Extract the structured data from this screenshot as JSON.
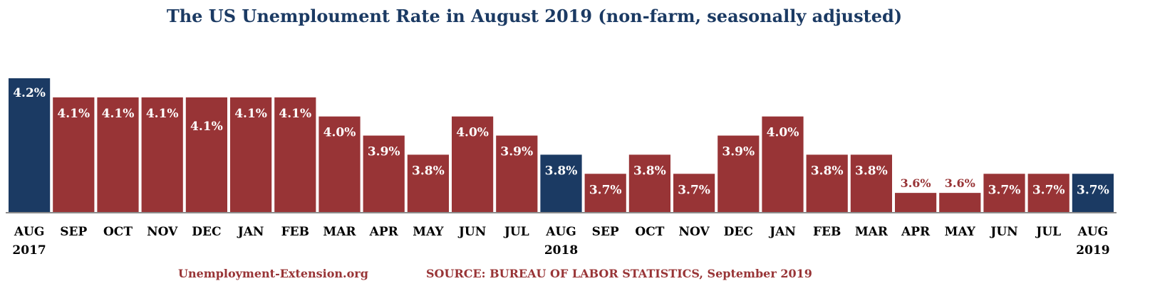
{
  "colors": {
    "highlight": "#1b3a63",
    "normal": "#983436",
    "label_inside": "#ffffff",
    "label_outside": "#983436",
    "axis": "#8c8c8c",
    "tick_text": "#000000"
  },
  "footer": {
    "site": "Unemployment-Extension.org",
    "source": "SOURCE: BUREAU OF LABOR STATISTICS, September 2019"
  },
  "chart_data": {
    "type": "bar",
    "title": "The US Unemploument Rate in August 2019 (non-farm, seasonally adjusted)",
    "xlabel": "",
    "ylabel": "",
    "categories": [
      "AUG",
      "SEP",
      "OCT",
      "NOV",
      "DEC",
      "JAN",
      "FEB",
      "MAR",
      "APR",
      "MAY",
      "JUN",
      "JUL",
      "AUG",
      "SEP",
      "OCT",
      "NOV",
      "DEC",
      "JAN",
      "FEB",
      "MAR",
      "APR",
      "MAY",
      "JUN",
      "JUL",
      "AUG"
    ],
    "year_labels": [
      "2017",
      "",
      "",
      "",
      "",
      "",
      "",
      "",
      "",
      "",
      "",
      "",
      "2018",
      "",
      "",
      "",
      "",
      "",
      "",
      "",
      "",
      "",
      "",
      "",
      "2019"
    ],
    "values": [
      4.2,
      4.1,
      4.1,
      4.1,
      4.1,
      4.1,
      4.1,
      4.0,
      3.9,
      3.8,
      4.0,
      3.9,
      3.8,
      3.7,
      3.8,
      3.7,
      3.9,
      4.0,
      3.8,
      3.8,
      3.6,
      3.6,
      3.7,
      3.7,
      3.7
    ],
    "data_labels": [
      "4.2%",
      "4.1%",
      "4.1%",
      "4.1%",
      "4.1%",
      "4.1%",
      "4.1%",
      "4.0%",
      "3.9%",
      "3.8%",
      "4.0%",
      "3.9%",
      "3.8%",
      "3.7%",
      "3.8%",
      "3.7%",
      "3.9%",
      "4.0%",
      "3.8%",
      "3.8%",
      "3.6%",
      "3.6%",
      "3.7%",
      "3.7%",
      "3.7%"
    ],
    "highlighted": [
      true,
      false,
      false,
      false,
      false,
      false,
      false,
      false,
      false,
      false,
      false,
      false,
      true,
      false,
      false,
      false,
      false,
      false,
      false,
      false,
      false,
      false,
      false,
      false,
      true
    ],
    "ylim": [
      3.5,
      4.2
    ],
    "grid": false,
    "legend": "none"
  }
}
